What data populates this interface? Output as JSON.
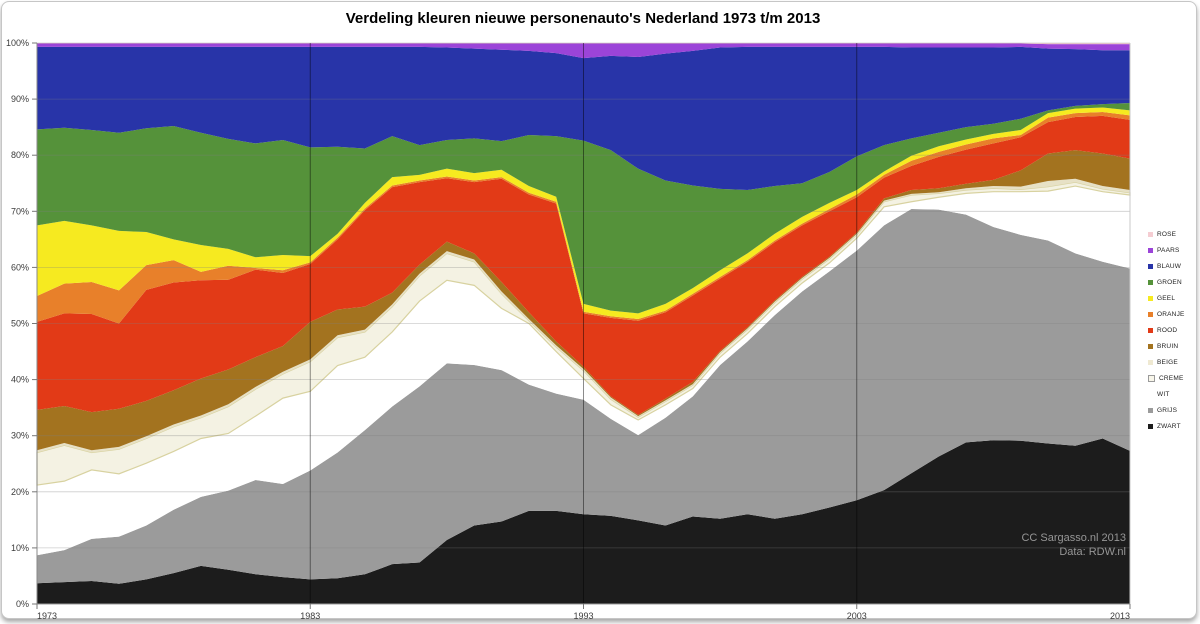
{
  "title": "Verdeling kleuren nieuwe personenauto's Nederland 1973 t/m 2013",
  "watermark": {
    "line1": "CC Sargasso.nl 2013",
    "line2": "Data: RDW.nl"
  },
  "axes": {
    "y_tick_labels": [
      "0%",
      "10%",
      "20%",
      "30%",
      "40%",
      "50%",
      "60%",
      "70%",
      "80%",
      "90%",
      "100%"
    ],
    "x_tick_labels": [
      "1973",
      "1983",
      "1993",
      "2003",
      "2013"
    ],
    "x_tick_years": [
      1973,
      1983,
      1993,
      2003,
      2013
    ],
    "x_gridline_years": [
      1983,
      1993,
      2003
    ]
  },
  "legend": {
    "position": "right",
    "items": [
      {
        "label": "ROSE",
        "color": "#f5cdd2",
        "outlined": false
      },
      {
        "label": "PAARS",
        "color": "#9b44d8",
        "outlined": false
      },
      {
        "label": "BLAUW",
        "color": "#2834a8",
        "outlined": false
      },
      {
        "label": "GROEN",
        "color": "#55923a",
        "outlined": false
      },
      {
        "label": "GEEL",
        "color": "#f6ea20",
        "outlined": false
      },
      {
        "label": "ORANJE",
        "color": "#e8802a",
        "outlined": false
      },
      {
        "label": "ROOD",
        "color": "#e23a17",
        "outlined": false
      },
      {
        "label": "BRUIN",
        "color": "#a3731f",
        "outlined": false
      },
      {
        "label": "BEIGE",
        "color": "#efe9d2",
        "outlined": false
      },
      {
        "label": "CREME",
        "color": "#f8f6ea",
        "outlined": true
      },
      {
        "label": "WIT",
        "color": "#ffffff",
        "outlined": false
      },
      {
        "label": "GRIJS",
        "color": "#9b9b9b",
        "outlined": false
      },
      {
        "label": "ZWART",
        "color": "#1c1c1c",
        "outlined": false
      }
    ]
  },
  "chart_data": {
    "type": "area",
    "stacked": true,
    "title": "Verdeling kleuren nieuwe personenauto's Nederland 1973 t/m 2013",
    "xlabel": "",
    "ylabel": "",
    "ylim": [
      0,
      100
    ],
    "y_unit": "percent",
    "grid": true,
    "note": "Stacked 100% area chart of new-car colour shares. Values below are cumulative stack tops in percent, listed bottom series first; each series' own share = its cumulative top minus the previous series' cumulative top.",
    "x": [
      1973,
      1974,
      1975,
      1976,
      1977,
      1978,
      1979,
      1980,
      1981,
      1982,
      1983,
      1984,
      1985,
      1986,
      1987,
      1988,
      1989,
      1990,
      1991,
      1992,
      1993,
      1994,
      1995,
      1996,
      1997,
      1998,
      1999,
      2000,
      2001,
      2002,
      2003,
      2004,
      2005,
      2006,
      2007,
      2008,
      2009,
      2010,
      2011,
      2012,
      2013
    ],
    "series": [
      {
        "name": "ZWART",
        "color": "#1c1c1c",
        "cumulative_top_percent": [
          3.7,
          3.9,
          4.1,
          3.6,
          4.4,
          5.5,
          6.8,
          6.1,
          5.3,
          4.8,
          4.4,
          4.6,
          5.3,
          7.1,
          7.4,
          11.4,
          14.0,
          14.7,
          16.6,
          16.6,
          16.0,
          15.7,
          14.9,
          14.0,
          15.6,
          15.2,
          16.0,
          15.2,
          16.0,
          17.2,
          18.5,
          20.3,
          23.3,
          26.3,
          28.8,
          29.2,
          29.1,
          28.6,
          28.2,
          29.5,
          27.3
        ]
      },
      {
        "name": "GRIJS",
        "color": "#9b9b9b",
        "cumulative_top_percent": [
          8.7,
          9.6,
          11.6,
          12.0,
          14.0,
          16.8,
          19.1,
          20.2,
          22.1,
          21.4,
          23.8,
          27.0,
          31.0,
          35.2,
          38.8,
          42.9,
          42.6,
          41.7,
          39.1,
          37.5,
          36.4,
          33.0,
          30.1,
          33.2,
          37.0,
          42.6,
          46.8,
          51.5,
          55.7,
          59.3,
          63.0,
          67.5,
          70.4,
          70.3,
          69.4,
          67.2,
          65.8,
          64.8,
          62.5,
          61.0,
          59.8
        ]
      },
      {
        "name": "WIT",
        "color": "#ffffff",
        "cumulative_top_percent": [
          21.2,
          21.9,
          23.9,
          23.2,
          25.1,
          27.2,
          29.5,
          30.4,
          33.5,
          36.7,
          37.9,
          42.5,
          44.0,
          48.5,
          54.0,
          57.7,
          56.8,
          52.7,
          50.0,
          45.0,
          40.2,
          35.5,
          32.8,
          35.5,
          38.4,
          44.0,
          48.2,
          53.0,
          57.2,
          60.8,
          65.2,
          70.8,
          71.7,
          72.5,
          73.2,
          73.5,
          73.5,
          73.6,
          74.5,
          73.5,
          72.9
        ]
      },
      {
        "name": "CREME",
        "color": "#f4f2e3",
        "stroke": "#d8d2a0",
        "cumulative_top_percent": [
          27.0,
          28.3,
          27.0,
          27.6,
          29.5,
          31.6,
          33.2,
          35.2,
          38.3,
          41.0,
          43.2,
          47.5,
          48.5,
          53.0,
          58.5,
          62.5,
          61.0,
          55.3,
          50.5,
          45.8,
          41.6,
          36.5,
          33.3,
          36.1,
          39.0,
          44.7,
          48.9,
          53.7,
          57.9,
          61.5,
          65.8,
          71.7,
          72.9,
          73.2,
          73.8,
          74.1,
          73.9,
          74.4,
          75.2,
          74.0,
          73.3
        ]
      },
      {
        "name": "BEIGE",
        "color": "#e7e1c6",
        "cumulative_top_percent": [
          27.4,
          28.7,
          27.4,
          28.0,
          29.9,
          32.0,
          33.6,
          35.6,
          38.7,
          41.4,
          43.6,
          47.9,
          48.9,
          53.4,
          58.9,
          62.9,
          61.4,
          55.7,
          50.8,
          46.1,
          41.9,
          36.8,
          33.5,
          36.3,
          39.2,
          44.9,
          49.1,
          53.9,
          58.1,
          61.7,
          66.0,
          71.9,
          73.1,
          73.4,
          74.1,
          74.5,
          74.4,
          75.4,
          75.8,
          74.5,
          73.8
        ]
      },
      {
        "name": "BRUIN",
        "color": "#a3731f",
        "cumulative_top_percent": [
          34.6,
          35.3,
          34.2,
          34.8,
          36.2,
          38.1,
          40.2,
          41.8,
          44.0,
          46.0,
          50.3,
          52.5,
          53.0,
          55.5,
          60.5,
          64.6,
          62.5,
          57.4,
          52.0,
          46.8,
          42.3,
          37.0,
          33.7,
          36.6,
          39.6,
          45.1,
          49.3,
          54.1,
          58.3,
          61.9,
          66.2,
          72.3,
          73.8,
          74.1,
          74.9,
          75.6,
          77.3,
          80.3,
          80.9,
          80.3,
          79.4
        ]
      },
      {
        "name": "ROOD",
        "color": "#e23a17",
        "cumulative_top_percent": [
          50.3,
          51.8,
          51.7,
          50.0,
          56.0,
          57.3,
          57.7,
          57.8,
          59.6,
          59.0,
          60.6,
          65.0,
          70.2,
          74.3,
          75.2,
          75.9,
          75.2,
          75.8,
          73.0,
          71.4,
          51.8,
          51.0,
          50.5,
          52.0,
          55.0,
          58.0,
          61.0,
          64.5,
          67.5,
          70.0,
          72.5,
          76.0,
          78.1,
          79.7,
          81.0,
          82.1,
          83.2,
          85.9,
          86.8,
          87.0,
          86.3
        ]
      },
      {
        "name": "ORANJE",
        "color": "#e8802a",
        "cumulative_top_percent": [
          54.9,
          57.1,
          57.4,
          55.9,
          60.4,
          61.3,
          59.2,
          60.3,
          59.9,
          59.5,
          60.9,
          65.3,
          70.5,
          74.6,
          75.5,
          76.2,
          75.5,
          76.1,
          73.3,
          71.7,
          52.1,
          51.3,
          50.8,
          52.3,
          55.3,
          58.3,
          61.3,
          64.8,
          67.8,
          70.4,
          73.0,
          76.5,
          79.0,
          80.6,
          81.9,
          83.0,
          83.6,
          86.7,
          87.5,
          87.7,
          87.1
        ]
      },
      {
        "name": "GEEL",
        "color": "#f6ea20",
        "cumulative_top_percent": [
          67.5,
          68.3,
          67.5,
          66.5,
          66.3,
          65.0,
          64.0,
          63.3,
          61.8,
          62.2,
          62.0,
          66.0,
          71.5,
          76.1,
          76.5,
          77.6,
          76.8,
          77.4,
          74.5,
          72.6,
          53.5,
          52.3,
          51.8,
          53.5,
          56.3,
          59.5,
          62.5,
          66.0,
          69.0,
          71.5,
          73.8,
          77.1,
          79.9,
          81.6,
          82.8,
          83.8,
          84.5,
          87.5,
          88.3,
          88.5,
          88.0
        ]
      },
      {
        "name": "GROEN",
        "color": "#55923a",
        "cumulative_top_percent": [
          84.6,
          84.9,
          84.5,
          84.0,
          84.8,
          85.2,
          84.0,
          82.9,
          82.1,
          82.7,
          81.4,
          81.5,
          81.2,
          83.4,
          81.8,
          82.7,
          83.0,
          82.5,
          83.6,
          83.4,
          82.6,
          80.9,
          77.6,
          75.5,
          74.6,
          74.0,
          73.8,
          74.5,
          75.0,
          77.0,
          79.8,
          81.8,
          83.0,
          84.0,
          85.0,
          85.6,
          86.5,
          88.0,
          88.8,
          89.1,
          89.3
        ]
      },
      {
        "name": "BLAUW",
        "color": "#2834a8",
        "cumulative_top_percent": [
          99.3,
          99.3,
          99.3,
          99.3,
          99.3,
          99.3,
          99.3,
          99.3,
          99.3,
          99.3,
          99.3,
          99.3,
          99.3,
          99.3,
          99.3,
          99.2,
          99.0,
          98.8,
          98.6,
          98.2,
          97.3,
          97.7,
          97.5,
          98.1,
          98.6,
          99.2,
          99.3,
          99.3,
          99.3,
          99.3,
          99.3,
          99.3,
          99.2,
          99.2,
          99.2,
          99.2,
          99.3,
          99.0,
          98.9,
          98.7,
          98.7
        ]
      },
      {
        "name": "PAARS",
        "color": "#9b44d8",
        "cumulative_top_percent": [
          99.9,
          99.9,
          99.9,
          99.9,
          99.9,
          99.9,
          99.9,
          99.9,
          99.9,
          99.9,
          99.9,
          99.9,
          99.9,
          99.9,
          99.9,
          99.9,
          99.9,
          99.9,
          99.9,
          99.9,
          99.9,
          99.9,
          99.9,
          99.9,
          99.9,
          99.9,
          99.9,
          99.9,
          99.9,
          99.9,
          99.9,
          99.9,
          99.9,
          99.9,
          99.9,
          99.9,
          99.9,
          99.8,
          99.8,
          99.8,
          99.8
        ]
      },
      {
        "name": "ROSE",
        "color": "#f5cdd2",
        "cumulative_top_percent": [
          100,
          100,
          100,
          100,
          100,
          100,
          100,
          100,
          100,
          100,
          100,
          100,
          100,
          100,
          100,
          100,
          100,
          100,
          100,
          100,
          100,
          100,
          100,
          100,
          100,
          100,
          100,
          100,
          100,
          100,
          100,
          100,
          100,
          100,
          100,
          100,
          100,
          100,
          100,
          100,
          100
        ]
      }
    ]
  }
}
